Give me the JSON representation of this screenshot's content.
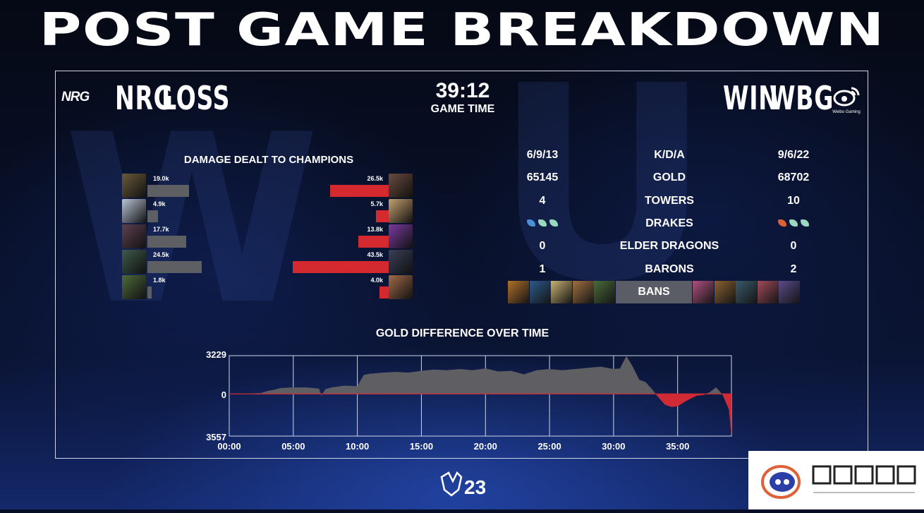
{
  "title": "POST GAME BREAKDOWN",
  "left_team": {
    "logo": "NRG",
    "name": "NRG",
    "result": "LOSS"
  },
  "right_team": {
    "logo_text": "Weibo Gaming",
    "name": "WBG",
    "result": "WIN"
  },
  "game_time": {
    "value": "39:12",
    "label": "GAME TIME"
  },
  "damage": {
    "title": "DAMAGE DEALT TO CHAMPIONS",
    "max": 43.5,
    "left": [
      {
        "label": "19.0k",
        "value": 19.0,
        "color": "#6b5a3a"
      },
      {
        "label": "4.9k",
        "value": 4.9,
        "color": "#b9c4d6"
      },
      {
        "label": "17.7k",
        "value": 17.7,
        "color": "#5d4050"
      },
      {
        "label": "24.5k",
        "value": 24.5,
        "color": "#3f5a4a"
      },
      {
        "label": "1.8k",
        "value": 1.8,
        "color": "#4f6a3a"
      }
    ],
    "right": [
      {
        "label": "26.5k",
        "value": 26.5,
        "color": "#6a4a3e"
      },
      {
        "label": "5.7k",
        "value": 5.7,
        "color": "#c4a070"
      },
      {
        "label": "13.8k",
        "value": 13.8,
        "color": "#7a3aa0"
      },
      {
        "label": "43.5k",
        "value": 43.5,
        "color": "#3a3f58"
      },
      {
        "label": "4.0k",
        "value": 4.0,
        "color": "#a06a48"
      }
    ]
  },
  "stats": [
    {
      "left": "6/9/13",
      "label": "K/D/A",
      "right": "9/6/22"
    },
    {
      "left": "65145",
      "label": "GOLD",
      "right": "68702"
    },
    {
      "left": "4",
      "label": "TOWERS",
      "right": "10"
    },
    {
      "left": "drakes-icons",
      "label": "DRAKES",
      "right": "drakes-icons"
    },
    {
      "left": "0",
      "label": "ELDER DRAGONS",
      "right": "0"
    },
    {
      "left": "1",
      "label": "BARONS",
      "right": "2"
    }
  ],
  "drakes": {
    "left": [
      {
        "icon": "ocean-drake-icon",
        "color": "#4a8fd8"
      },
      {
        "icon": "cloud-drake-icon",
        "color": "#9ad8c0"
      },
      {
        "icon": "cloud-drake-icon",
        "color": "#9ad8c0"
      }
    ],
    "right": [
      {
        "icon": "infernal-drake-icon",
        "color": "#e0603a"
      },
      {
        "icon": "cloud-drake-icon",
        "color": "#9ad8c0"
      },
      {
        "icon": "cloud-drake-icon",
        "color": "#9ad8c0"
      }
    ]
  },
  "bans": {
    "label": "BANS",
    "left_colors": [
      "#b0702a",
      "#2a5a8a",
      "#c8b070",
      "#a07040",
      "#4a6a3a"
    ],
    "right_colors": [
      "#b05080",
      "#8a6030",
      "#3a5a6a",
      "#a04a5a",
      "#5a4a8a"
    ]
  },
  "gold": {
    "title": "GOLD DIFFERENCE OVER TIME",
    "y_top_label": "3229",
    "y_zero_label": "0",
    "y_bottom_label": "3557",
    "x_labels": [
      "00:00",
      "05:00",
      "10:00",
      "15:00",
      "20:00",
      "25:00",
      "30:00",
      "35:00"
    ]
  },
  "chart_data": {
    "type": "area",
    "title": "GOLD DIFFERENCE OVER TIME",
    "xlabel": "",
    "ylabel": "",
    "x_unit": "minutes",
    "ylim": [
      -3557,
      3229
    ],
    "xlim": [
      0,
      39.2
    ],
    "x": [
      0,
      1,
      2,
      2.5,
      3,
      3.5,
      4,
      5,
      6,
      6.5,
      7,
      7.2,
      7.5,
      8,
      9,
      10,
      10.5,
      11,
      12,
      13,
      14,
      15,
      16,
      17,
      18,
      19,
      20,
      21,
      22,
      23,
      24,
      25,
      26,
      27,
      28,
      29,
      30,
      30.5,
      31,
      31.5,
      32,
      32.5,
      33,
      33.5,
      34,
      34.5,
      35,
      35.5,
      36,
      36.5,
      37,
      37.5,
      38,
      38.5,
      39,
      39.2
    ],
    "y": [
      0,
      0,
      50,
      80,
      250,
      350,
      500,
      550,
      550,
      500,
      450,
      -150,
      400,
      550,
      700,
      650,
      1600,
      1700,
      1800,
      1850,
      1800,
      1950,
      2050,
      2000,
      2100,
      2000,
      2150,
      1900,
      1950,
      1650,
      2000,
      2100,
      2000,
      2100,
      2200,
      2300,
      2100,
      2150,
      3200,
      2300,
      1200,
      1000,
      400,
      -300,
      -900,
      -1100,
      -1050,
      -700,
      -400,
      -150,
      -100,
      150,
      550,
      -50,
      -1300,
      -3557
    ],
    "zero_line": true,
    "positive_color": "#5f5f63",
    "negative_color": "#d02b34"
  }
}
